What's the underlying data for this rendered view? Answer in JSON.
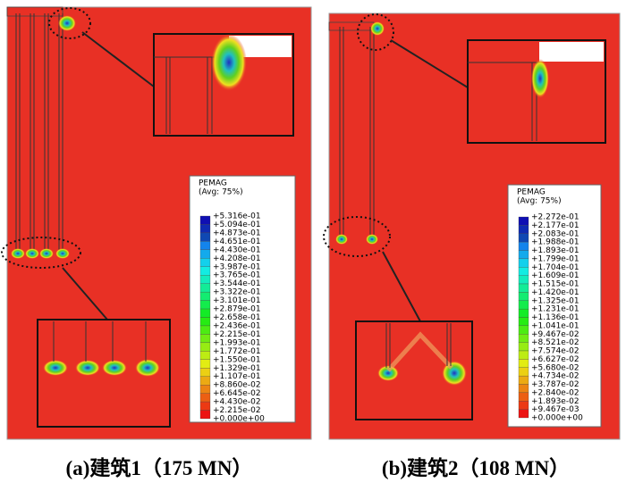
{
  "panels": [
    {
      "legend_title": "PEMAG",
      "legend_subtitle": "(Avg: 75%)",
      "legend_labels": [
        "+5.316e-01",
        "+5.094e-01",
        "+4.873e-01",
        "+4.651e-01",
        "+4.430e-01",
        "+4.208e-01",
        "+3.987e-01",
        "+3.765e-01",
        "+3.544e-01",
        "+3.322e-01",
        "+3.101e-01",
        "+2.879e-01",
        "+2.658e-01",
        "+2.436e-01",
        "+2.215e-01",
        "+1.993e-01",
        "+1.772e-01",
        "+1.550e-01",
        "+1.329e-01",
        "+1.107e-01",
        "+8.860e-02",
        "+6.645e-02",
        "+4.430e-02",
        "+2.215e-02",
        "+0.000e+00"
      ],
      "caption": "(a)建筑1（175 MN）"
    },
    {
      "legend_title": "PEMAG",
      "legend_subtitle": "(Avg: 75%)",
      "legend_labels": [
        "+2.272e-01",
        "+2.177e-01",
        "+2.083e-01",
        "+1.988e-01",
        "+1.893e-01",
        "+1.799e-01",
        "+1.704e-01",
        "+1.609e-01",
        "+1.515e-01",
        "+1.420e-01",
        "+1.325e-01",
        "+1.231e-01",
        "+1.136e-01",
        "+1.041e-01",
        "+9.467e-02",
        "+8.521e-02",
        "+7.574e-02",
        "+6.627e-02",
        "+5.680e-02",
        "+4.734e-02",
        "+3.787e-02",
        "+2.840e-02",
        "+1.893e-02",
        "+9.467e-03",
        "+0.000e+00"
      ],
      "caption": "(b)建筑2（108 MN）"
    }
  ]
}
